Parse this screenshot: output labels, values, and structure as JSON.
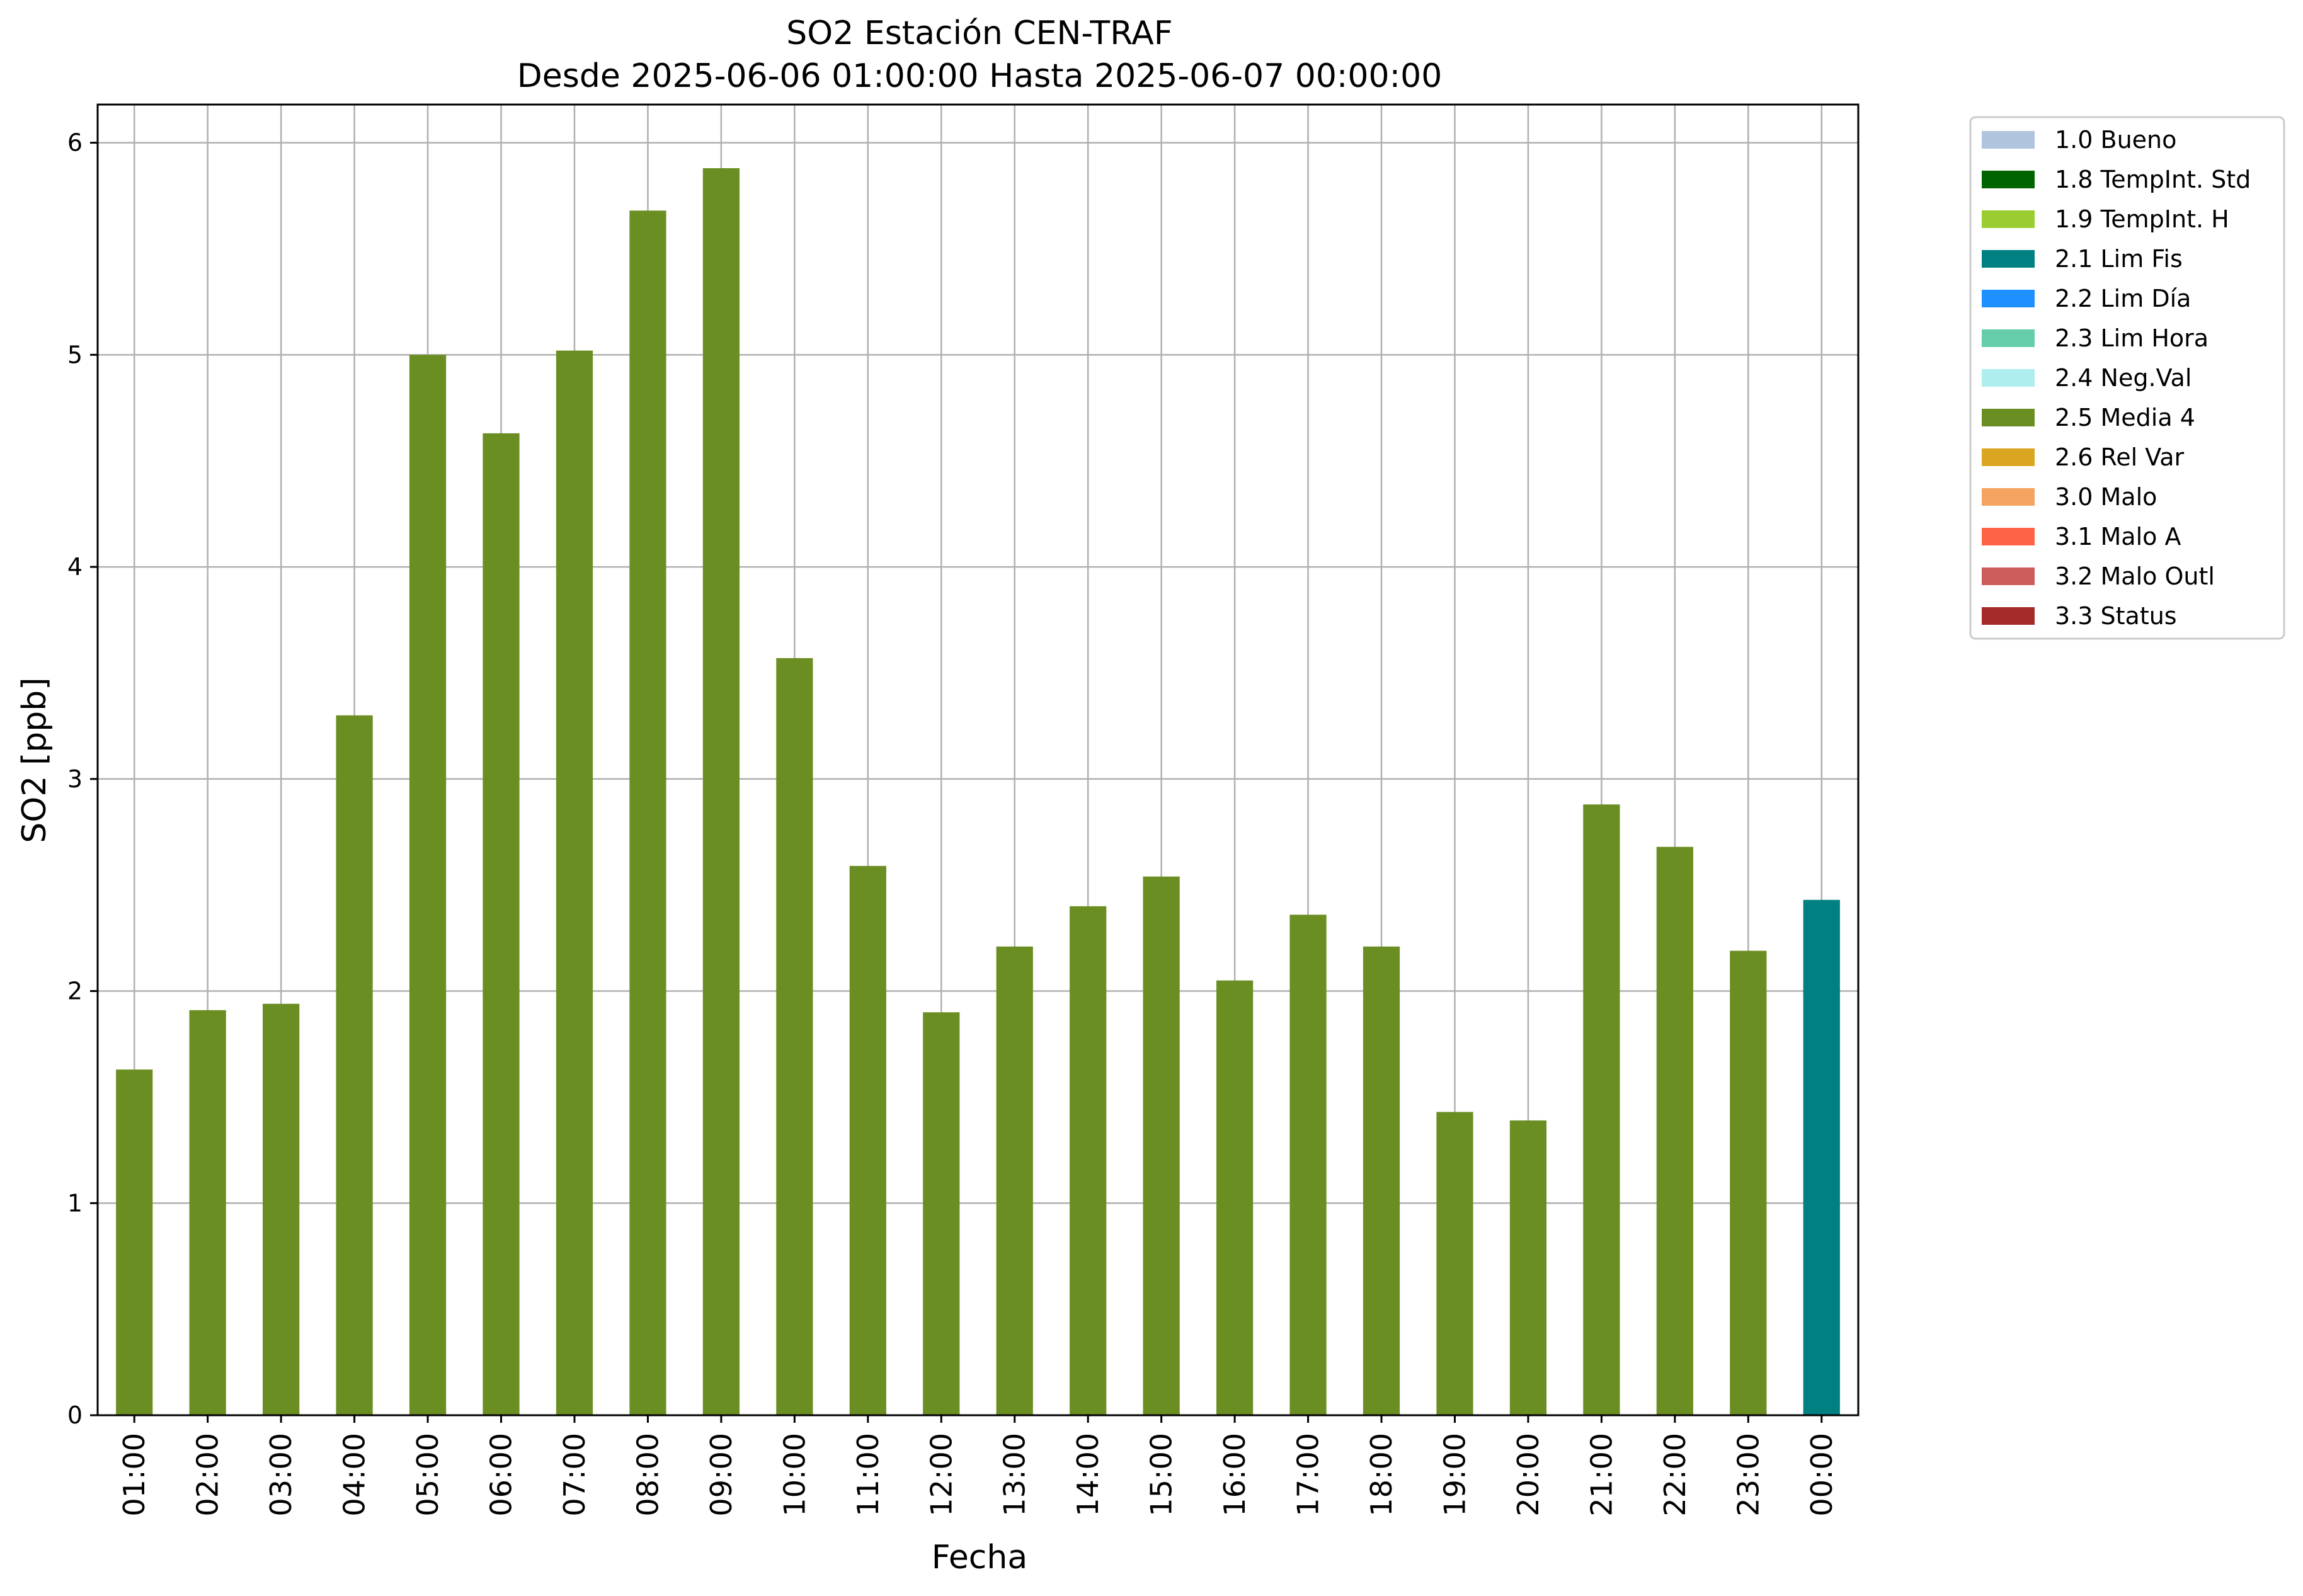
{
  "chart_data": {
    "type": "bar",
    "title": "SO2 Estación CEN-TRAF",
    "subtitle": "Desde 2025-06-06 01:00:00 Hasta 2025-06-07 00:00:00",
    "xlabel": "Fecha",
    "ylabel": "SO2 [ppb]",
    "ylim": [
      0,
      6.18
    ],
    "yticks": [
      "0",
      "1",
      "2",
      "3",
      "4",
      "5",
      "6"
    ],
    "grid": true,
    "legend_position": "outside-top-right",
    "categories": [
      "01:00",
      "02:00",
      "03:00",
      "04:00",
      "05:00",
      "06:00",
      "07:00",
      "08:00",
      "09:00",
      "10:00",
      "11:00",
      "12:00",
      "13:00",
      "14:00",
      "15:00",
      "16:00",
      "17:00",
      "18:00",
      "19:00",
      "20:00",
      "21:00",
      "22:00",
      "23:00",
      "00:00"
    ],
    "values": [
      1.63,
      1.91,
      1.94,
      3.3,
      5.0,
      4.63,
      5.02,
      5.68,
      5.88,
      3.57,
      2.59,
      1.9,
      2.21,
      2.4,
      2.54,
      2.05,
      2.36,
      2.21,
      1.43,
      1.39,
      2.88,
      2.68,
      2.19,
      2.43
    ],
    "bar_flags": [
      "2.5 Media 4",
      "2.5 Media 4",
      "2.5 Media 4",
      "2.5 Media 4",
      "2.5 Media 4",
      "2.5 Media 4",
      "2.5 Media 4",
      "2.5 Media 4",
      "2.5 Media 4",
      "2.5 Media 4",
      "2.5 Media 4",
      "2.5 Media 4",
      "2.5 Media 4",
      "2.5 Media 4",
      "2.5 Media 4",
      "2.5 Media 4",
      "2.5 Media 4",
      "2.5 Media 4",
      "2.5 Media 4",
      "2.5 Media 4",
      "2.5 Media 4",
      "2.5 Media 4",
      "2.5 Media 4",
      "2.1 Lim Fis"
    ],
    "legend": [
      {
        "label": "1.0 Bueno",
        "color": "#b0c4de"
      },
      {
        "label": "1.8 TempInt. Std",
        "color": "#006400"
      },
      {
        "label": "1.9 TempInt. H",
        "color": "#9acd32"
      },
      {
        "label": "2.1 Lim Fis",
        "color": "#008080"
      },
      {
        "label": "2.2 Lim Día",
        "color": "#1e90ff"
      },
      {
        "label": "2.3 Lim Hora",
        "color": "#66cdaa"
      },
      {
        "label": "2.4 Neg.Val",
        "color": "#afeeee"
      },
      {
        "label": "2.5 Media 4",
        "color": "#6b8e23"
      },
      {
        "label": "2.6 Rel Var",
        "color": "#daa520"
      },
      {
        "label": "3.0 Malo",
        "color": "#f4a460"
      },
      {
        "label": "3.1 Malo A",
        "color": "#ff6347"
      },
      {
        "label": "3.2 Malo Outl",
        "color": "#cd5c5c"
      },
      {
        "label": "3.3 Status",
        "color": "#a52a2a"
      }
    ]
  }
}
